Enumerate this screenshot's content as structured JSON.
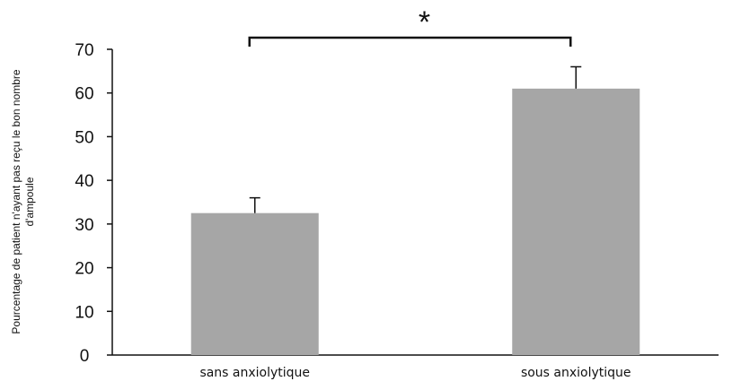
{
  "chart_data": {
    "type": "bar",
    "categories": [
      "sans anxiolytique",
      "sous anxiolytique"
    ],
    "values": [
      32.5,
      61
    ],
    "error_bars": [
      3.5,
      5
    ],
    "title": "",
    "xlabel": "",
    "ylabel_lines": [
      "Pourcentage de patient n'ayant pas reçu le bon nombre",
      "d'ampoule"
    ],
    "ylim": [
      0,
      70
    ],
    "yticks": [
      0,
      10,
      20,
      30,
      40,
      50,
      60,
      70
    ],
    "bar_color": "#a6a6a6",
    "grid": false,
    "significance": {
      "between": [
        0,
        1
      ],
      "label": "*"
    }
  }
}
